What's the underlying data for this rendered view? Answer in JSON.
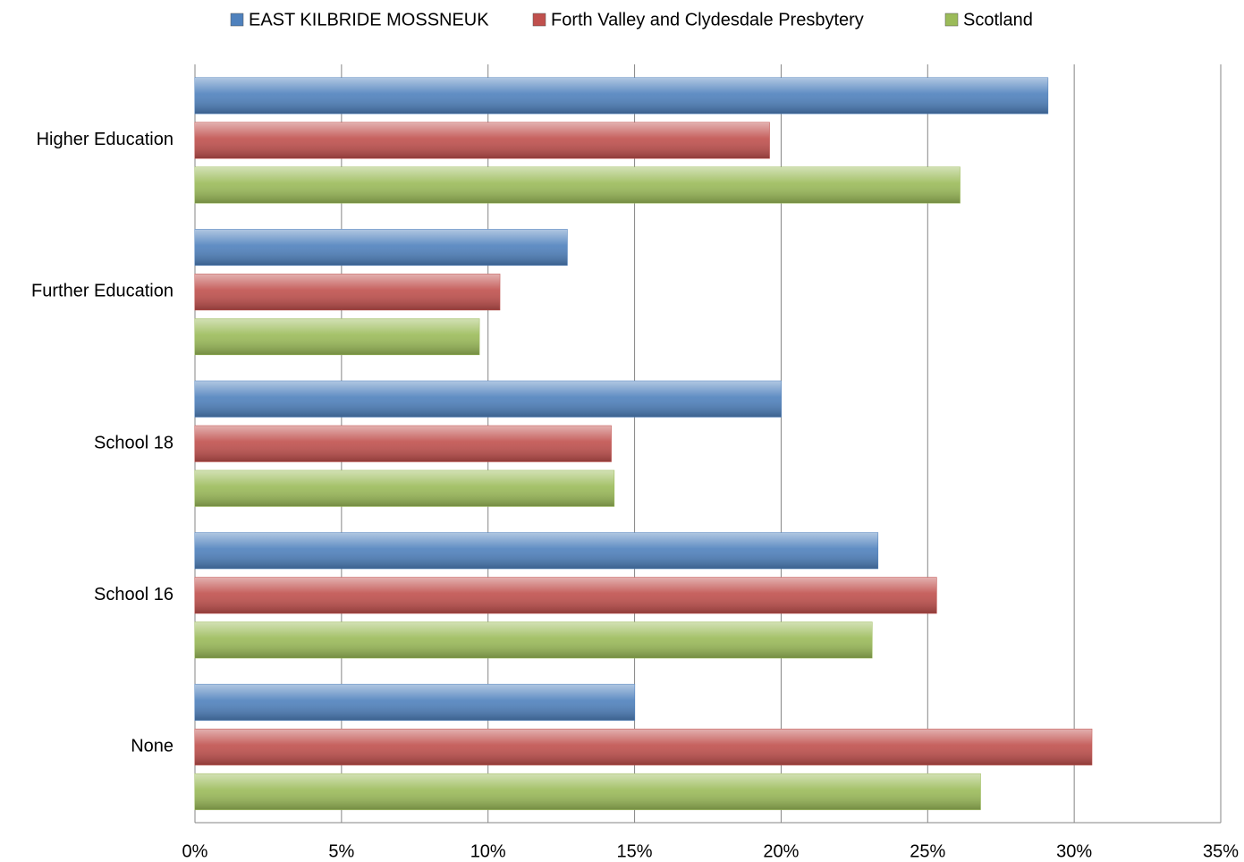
{
  "chart_data": {
    "type": "hbar",
    "categories": [
      "Higher Education",
      "Further Education",
      "School 18",
      "School 16",
      "None"
    ],
    "series": [
      {
        "name": "EAST KILBRIDE MOSSNEUK",
        "color": "#4f81bd",
        "values": [
          29.1,
          12.7,
          20.0,
          23.3,
          15.0
        ]
      },
      {
        "name": "Forth Valley and Clydesdale Presbytery",
        "color": "#c0504d",
        "values": [
          19.6,
          10.4,
          14.2,
          25.3,
          30.6
        ]
      },
      {
        "name": "Scotland",
        "color": "#9bbb59",
        "values": [
          26.1,
          9.7,
          14.3,
          23.1,
          26.8
        ]
      }
    ],
    "xlim": [
      0,
      35
    ],
    "xticks": [
      {
        "value": 0,
        "label": "0%"
      },
      {
        "value": 5,
        "label": "5%"
      },
      {
        "value": 10,
        "label": "10%"
      },
      {
        "value": 15,
        "label": "15%"
      },
      {
        "value": 20,
        "label": "20%"
      },
      {
        "value": 25,
        "label": "25%"
      },
      {
        "value": 30,
        "label": "30%"
      },
      {
        "value": 35,
        "label": "35%"
      }
    ],
    "grid": true,
    "legend": "top"
  }
}
